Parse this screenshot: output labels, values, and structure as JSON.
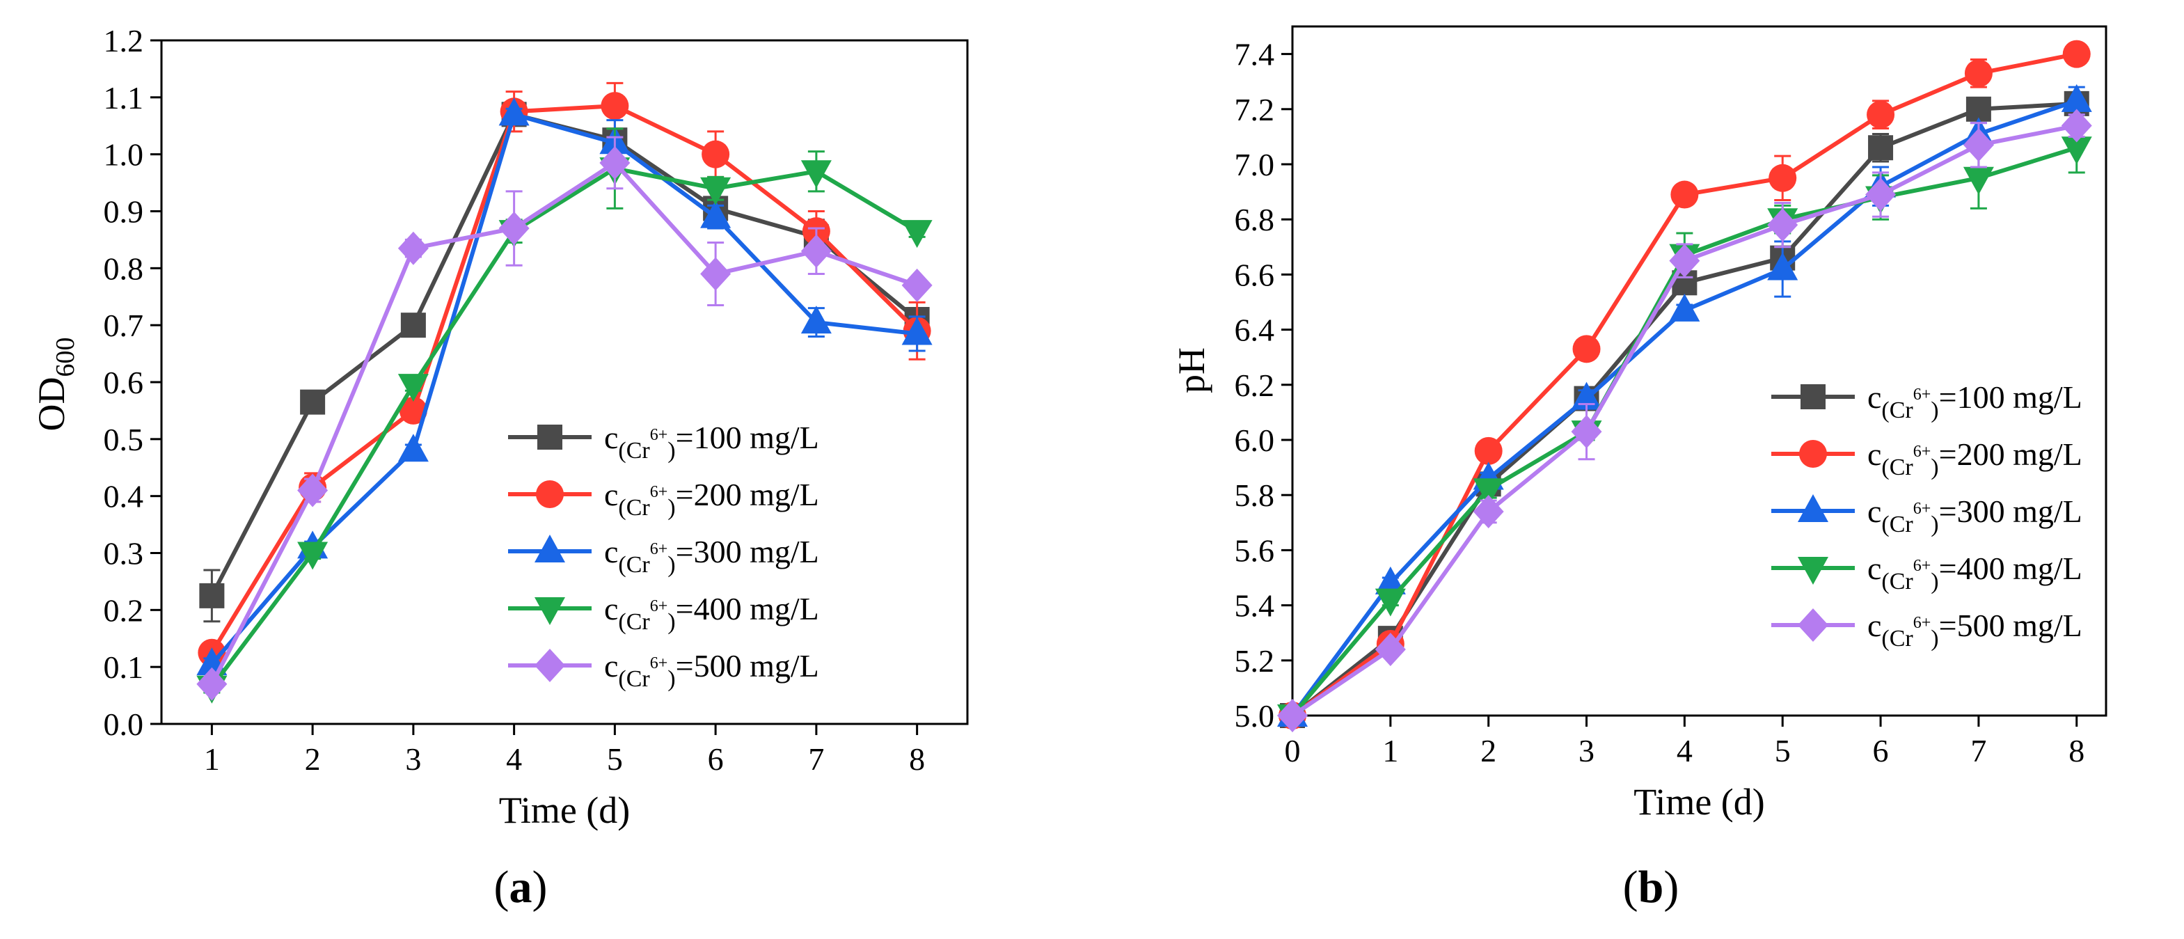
{
  "chart_data": [
    {
      "id": "a",
      "type": "line",
      "caption": {
        "open": "(",
        "letter": "a",
        "close": ")"
      },
      "xlabel": "Time (d)",
      "ylabel": {
        "main": "OD",
        "sub": "600"
      },
      "xlim": [
        0.5,
        8.5
      ],
      "ylim": [
        0.0,
        1.2
      ],
      "xticks": [
        1,
        2,
        3,
        4,
        5,
        6,
        7,
        8
      ],
      "xtick_labels": [
        "1",
        "2",
        "3",
        "4",
        "5",
        "6",
        "7",
        "8"
      ],
      "yticks": [
        0.0,
        0.1,
        0.2,
        0.3,
        0.4,
        0.5,
        0.6,
        0.7,
        0.8,
        0.9,
        1.0,
        1.1,
        1.2
      ],
      "ytick_labels": [
        "0.0",
        "0.1",
        "0.2",
        "0.3",
        "0.4",
        "0.5",
        "0.6",
        "0.7",
        "0.8",
        "0.9",
        "1.0",
        "1.1",
        "1.2"
      ],
      "legend_position": "center-right",
      "x": [
        1,
        2,
        3,
        4,
        5,
        6,
        7,
        8
      ],
      "series": [
        {
          "name": "c(Cr6+)=100 mg/L",
          "label_base": "c",
          "label_sub": "(Cr",
          "label_sup": "6+",
          "label_sub_end": ")",
          "label_value": "=100 mg/L",
          "color": "#4a4a4a",
          "marker": "square",
          "values": [
            0.225,
            0.565,
            0.7,
            1.07,
            1.025,
            0.905,
            0.855,
            0.71
          ],
          "errors": [
            0.045,
            0.01,
            0.01,
            0.01,
            0.02,
            0.02,
            0.03,
            0.02
          ]
        },
        {
          "name": "c(Cr6+)=200 mg/L",
          "label_base": "c",
          "label_sub": "(Cr",
          "label_sup": "6+",
          "label_sub_end": ")",
          "label_value": "=200 mg/L",
          "color": "#ff3b30",
          "marker": "circle",
          "values": [
            0.125,
            0.415,
            0.55,
            1.075,
            1.085,
            1.0,
            0.865,
            0.69
          ],
          "errors": [
            0.01,
            0.025,
            0.01,
            0.035,
            0.04,
            0.04,
            0.035,
            0.05
          ]
        },
        {
          "name": "c(Cr6+)=300 mg/L",
          "label_base": "c",
          "label_sub": "(Cr",
          "label_sup": "6+",
          "label_sub_end": ")",
          "label_value": "=300 mg/L",
          "color": "#1a66e6",
          "marker": "triangle-up",
          "values": [
            0.105,
            0.31,
            0.48,
            1.07,
            1.02,
            0.89,
            0.705,
            0.685
          ],
          "errors": [
            0.01,
            0.01,
            0.01,
            0.01,
            0.04,
            0.02,
            0.025,
            0.03
          ]
        },
        {
          "name": "c(Cr6+)=400 mg/L",
          "label_base": "c",
          "label_sub": "(Cr",
          "label_sup": "6+",
          "label_sub_end": ")",
          "label_value": "=400 mg/L",
          "color": "#1fa84a",
          "marker": "triangle-down",
          "values": [
            0.065,
            0.3,
            0.595,
            0.865,
            0.975,
            0.94,
            0.97,
            0.865
          ],
          "errors": [
            0.01,
            0.01,
            0.01,
            0.02,
            0.07,
            0.02,
            0.035,
            0.01
          ]
        },
        {
          "name": "c(Cr6+)=500 mg/L",
          "label_base": "c",
          "label_sub": "(Cr",
          "label_sup": "6+",
          "label_sub_end": ")",
          "label_value": "=500 mg/L",
          "color": "#b57cf0",
          "marker": "diamond",
          "values": [
            0.07,
            0.41,
            0.835,
            0.87,
            0.985,
            0.79,
            0.83,
            0.77
          ],
          "errors": [
            0.01,
            0.02,
            0.015,
            0.065,
            0.045,
            0.055,
            0.04,
            0.01
          ]
        }
      ]
    },
    {
      "id": "b",
      "type": "line",
      "caption": {
        "open": "(",
        "letter": "b",
        "close": ")"
      },
      "xlabel": "Time (d)",
      "ylabel": {
        "main": "pH",
        "sub": ""
      },
      "xlim": [
        0,
        8.3
      ],
      "ylim": [
        5.0,
        7.5
      ],
      "xticks": [
        0,
        1,
        2,
        3,
        4,
        5,
        6,
        7,
        8
      ],
      "xtick_labels": [
        "0",
        "1",
        "2",
        "3",
        "4",
        "5",
        "6",
        "7",
        "8"
      ],
      "yticks": [
        5.0,
        5.2,
        5.4,
        5.6,
        5.8,
        6.0,
        6.2,
        6.4,
        6.6,
        6.8,
        7.0,
        7.2,
        7.4
      ],
      "ytick_labels": [
        "5.0",
        "5.2",
        "5.4",
        "5.6",
        "5.8",
        "6.0",
        "6.2",
        "6.4",
        "6.6",
        "6.8",
        "7.0",
        "7.2",
        "7.4"
      ],
      "legend_position": "center-right",
      "x": [
        0,
        1,
        2,
        3,
        4,
        5,
        6,
        7,
        8
      ],
      "series": [
        {
          "name": "c(Cr6+)=100 mg/L",
          "label_base": "c",
          "label_sub": "(Cr",
          "label_sup": "6+",
          "label_sub_end": ")",
          "label_value": "=100 mg/L",
          "color": "#4a4a4a",
          "marker": "square",
          "values": [
            5.0,
            5.28,
            5.84,
            6.15,
            6.57,
            6.66,
            7.06,
            7.2,
            7.22
          ],
          "errors": [
            0.0,
            0.02,
            0.02,
            0.02,
            0.03,
            0.04,
            0.05,
            0.02,
            0.03
          ]
        },
        {
          "name": "c(Cr6+)=200 mg/L",
          "label_base": "c",
          "label_sub": "(Cr",
          "label_sup": "6+",
          "label_sub_end": ")",
          "label_value": "=200 mg/L",
          "color": "#ff3b30",
          "marker": "circle",
          "values": [
            5.0,
            5.26,
            5.96,
            6.33,
            6.89,
            6.95,
            7.18,
            7.33,
            7.4
          ],
          "errors": [
            0.0,
            0.02,
            0.02,
            0.02,
            0.02,
            0.08,
            0.05,
            0.05,
            0.02
          ]
        },
        {
          "name": "c(Cr6+)=300 mg/L",
          "label_base": "c",
          "label_sub": "(Cr",
          "label_sup": "6+",
          "label_sub_end": ")",
          "label_value": "=300 mg/L",
          "color": "#1a66e6",
          "marker": "triangle-up",
          "values": [
            5.0,
            5.48,
            5.86,
            6.15,
            6.47,
            6.62,
            6.92,
            7.11,
            7.23
          ],
          "errors": [
            0.0,
            0.02,
            0.02,
            0.03,
            0.02,
            0.1,
            0.07,
            0.04,
            0.05
          ]
        },
        {
          "name": "c(Cr6+)=400 mg/L",
          "label_base": "c",
          "label_sub": "(Cr",
          "label_sup": "6+",
          "label_sub_end": ")",
          "label_value": "=400 mg/L",
          "color": "#1fa84a",
          "marker": "triangle-down",
          "values": [
            5.0,
            5.42,
            5.82,
            6.03,
            6.67,
            6.8,
            6.88,
            6.95,
            7.06
          ],
          "errors": [
            0.0,
            0.02,
            0.03,
            0.03,
            0.08,
            0.05,
            0.08,
            0.11,
            0.09
          ]
        },
        {
          "name": "c(Cr6+)=500 mg/L",
          "label_base": "c",
          "label_sub": "(Cr",
          "label_sup": "6+",
          "label_sub_end": ")",
          "label_value": "=500 mg/L",
          "color": "#b57cf0",
          "marker": "diamond",
          "values": [
            5.0,
            5.24,
            5.74,
            6.03,
            6.65,
            6.78,
            6.89,
            7.07,
            7.14
          ],
          "errors": [
            0.0,
            0.02,
            0.04,
            0.1,
            0.06,
            0.08,
            0.08,
            0.08,
            0.04
          ]
        }
      ]
    }
  ]
}
